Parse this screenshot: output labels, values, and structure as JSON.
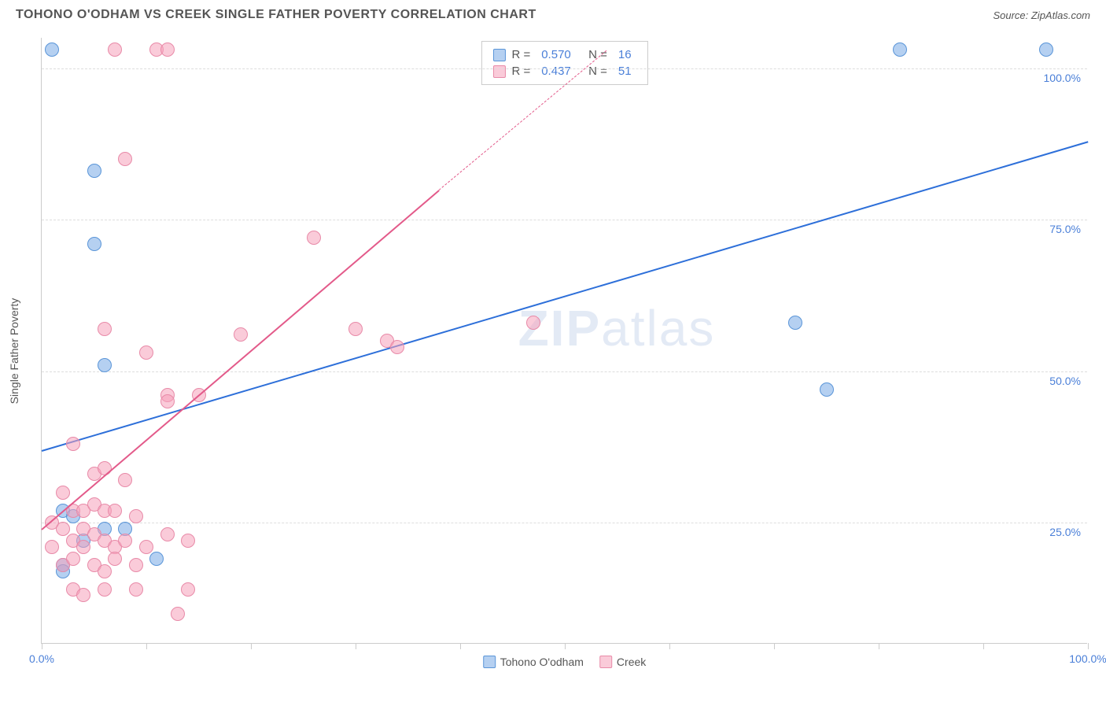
{
  "header": {
    "title": "TOHONO O'ODHAM VS CREEK SINGLE FATHER POVERTY CORRELATION CHART",
    "source": "Source: ZipAtlas.com"
  },
  "watermark": {
    "textA": "ZIP",
    "textB": "atlas"
  },
  "chart": {
    "type": "scatter",
    "ylabel": "Single Father Poverty",
    "xlim": [
      0,
      100
    ],
    "ylim": [
      5,
      105
    ],
    "xtick_positions": [
      0,
      10,
      20,
      30,
      40,
      50,
      60,
      70,
      80,
      90,
      100
    ],
    "xtick_labels_shown": {
      "0": "0.0%",
      "100": "100.0%"
    },
    "ytick_positions": [
      25,
      50,
      75,
      100
    ],
    "ytick_labels": [
      "25.0%",
      "50.0%",
      "75.0%",
      "100.0%"
    ],
    "grid_color": "#dddddd",
    "axis_color": "#cccccc",
    "label_fontsize": 14,
    "tick_color_blue": "#4a7fd8",
    "series": [
      {
        "name": "Tohono O'odham",
        "color_fill": "rgba(120,170,230,0.55)",
        "color_stroke": "#5a95d8",
        "marker_radius": 9,
        "R": "0.570",
        "N": "16",
        "trend": {
          "x1": 0,
          "y1": 37,
          "x2": 100,
          "y2": 88,
          "color": "#2d6fd9",
          "width": 2,
          "dash": "solid"
        },
        "points": [
          {
            "x": 1,
            "y": 103
          },
          {
            "x": 82,
            "y": 103
          },
          {
            "x": 96,
            "y": 103
          },
          {
            "x": 5,
            "y": 83
          },
          {
            "x": 5,
            "y": 71
          },
          {
            "x": 6,
            "y": 51
          },
          {
            "x": 72,
            "y": 58
          },
          {
            "x": 75,
            "y": 47
          },
          {
            "x": 2,
            "y": 27
          },
          {
            "x": 2,
            "y": 18
          },
          {
            "x": 2,
            "y": 17
          },
          {
            "x": 6,
            "y": 24
          },
          {
            "x": 8,
            "y": 24
          },
          {
            "x": 3,
            "y": 26
          },
          {
            "x": 11,
            "y": 19
          },
          {
            "x": 4,
            "y": 22
          }
        ]
      },
      {
        "name": "Creek",
        "color_fill": "rgba(245,160,185,0.55)",
        "color_stroke": "#e88aa8",
        "marker_radius": 9,
        "R": "0.437",
        "N": "51",
        "trend": {
          "x1": 0,
          "y1": 24,
          "x2": 38,
          "y2": 80,
          "color": "#e35a8a",
          "width": 2,
          "dash": "solid"
        },
        "trend_dashed": {
          "x1": 38,
          "y1": 80,
          "x2": 54,
          "y2": 103,
          "color": "#e35a8a",
          "width": 1,
          "dash": "dashed"
        },
        "points": [
          {
            "x": 7,
            "y": 103
          },
          {
            "x": 11,
            "y": 103
          },
          {
            "x": 12,
            "y": 103
          },
          {
            "x": 8,
            "y": 85
          },
          {
            "x": 26,
            "y": 72
          },
          {
            "x": 6,
            "y": 57
          },
          {
            "x": 10,
            "y": 53
          },
          {
            "x": 19,
            "y": 56
          },
          {
            "x": 30,
            "y": 57
          },
          {
            "x": 33,
            "y": 55
          },
          {
            "x": 34,
            "y": 54
          },
          {
            "x": 47,
            "y": 58
          },
          {
            "x": 12,
            "y": 46
          },
          {
            "x": 12,
            "y": 45
          },
          {
            "x": 15,
            "y": 46
          },
          {
            "x": 3,
            "y": 38
          },
          {
            "x": 5,
            "y": 33
          },
          {
            "x": 6,
            "y": 34
          },
          {
            "x": 8,
            "y": 32
          },
          {
            "x": 2,
            "y": 30
          },
          {
            "x": 3,
            "y": 27
          },
          {
            "x": 4,
            "y": 27
          },
          {
            "x": 5,
            "y": 28
          },
          {
            "x": 6,
            "y": 27
          },
          {
            "x": 7,
            "y": 27
          },
          {
            "x": 9,
            "y": 26
          },
          {
            "x": 1,
            "y": 25
          },
          {
            "x": 2,
            "y": 24
          },
          {
            "x": 4,
            "y": 24
          },
          {
            "x": 5,
            "y": 23
          },
          {
            "x": 1,
            "y": 21
          },
          {
            "x": 3,
            "y": 22
          },
          {
            "x": 4,
            "y": 21
          },
          {
            "x": 6,
            "y": 22
          },
          {
            "x": 7,
            "y": 21
          },
          {
            "x": 8,
            "y": 22
          },
          {
            "x": 10,
            "y": 21
          },
          {
            "x": 12,
            "y": 23
          },
          {
            "x": 14,
            "y": 22
          },
          {
            "x": 2,
            "y": 18
          },
          {
            "x": 3,
            "y": 19
          },
          {
            "x": 5,
            "y": 18
          },
          {
            "x": 6,
            "y": 17
          },
          {
            "x": 7,
            "y": 19
          },
          {
            "x": 9,
            "y": 18
          },
          {
            "x": 3,
            "y": 14
          },
          {
            "x": 4,
            "y": 13
          },
          {
            "x": 6,
            "y": 14
          },
          {
            "x": 9,
            "y": 14
          },
          {
            "x": 14,
            "y": 14
          },
          {
            "x": 13,
            "y": 10
          }
        ]
      }
    ]
  },
  "legend": {
    "items": [
      {
        "label": "Tohono O'odham",
        "fill": "rgba(120,170,230,0.55)",
        "stroke": "#5a95d8"
      },
      {
        "label": "Creek",
        "fill": "rgba(245,160,185,0.55)",
        "stroke": "#e88aa8"
      }
    ]
  }
}
